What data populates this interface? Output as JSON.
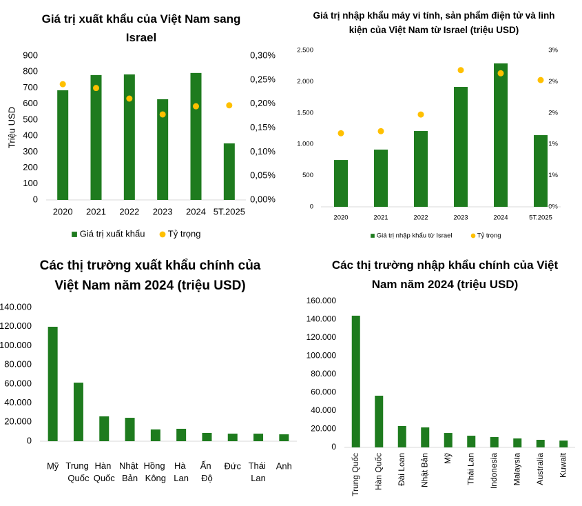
{
  "chart_data": [
    {
      "type": "combo",
      "title": "Giá trị xuất khẩu của Việt Nam sang Israel",
      "categories": [
        "2020",
        "2021",
        "2022",
        "2023",
        "2024",
        "5T.2025"
      ],
      "ylabel": "Triệu USD",
      "series": [
        {
          "name": "Giá trị xuất khẩu",
          "type": "bar",
          "color": "#1e7b1e",
          "values": [
            685,
            780,
            784,
            629,
            793,
            353
          ]
        },
        {
          "name": "Tỷ trọng",
          "type": "scatter",
          "color": "#ffc000",
          "axis": "y2",
          "values": [
            0.241,
            0.233,
            0.211,
            0.178,
            0.195,
            0.197
          ]
        }
      ],
      "ylim": [
        0,
        900
      ],
      "yticks": [
        0,
        100,
        200,
        300,
        400,
        500,
        600,
        700,
        800,
        900
      ],
      "y2lim": [
        0,
        0.3
      ],
      "y2ticks": [
        {
          "value": 0,
          "label": "0,00%"
        },
        {
          "value": 0.05,
          "label": "0,05%"
        },
        {
          "value": 0.1,
          "label": "0,10%"
        },
        {
          "value": 0.15,
          "label": "0,15%"
        },
        {
          "value": 0.2,
          "label": "0,20%"
        },
        {
          "value": 0.25,
          "label": "0,25%"
        },
        {
          "value": 0.3,
          "label": "0,30%"
        }
      ],
      "grid": false,
      "legend": "bottom"
    },
    {
      "type": "combo",
      "title": "Giá trị nhập khẩu máy vi tính, sản phẩm điện tử và linh kiện của Việt Nam từ Israel (triệu USD)",
      "categories": [
        "2020",
        "2021",
        "2022",
        "2023",
        "2024",
        "5T.2025"
      ],
      "series": [
        {
          "name": "Giá trị nhập khẩu từ Israel",
          "type": "bar",
          "color": "#1e7b1e",
          "values": [
            748,
            914,
            1211,
            1916,
            2291,
            1145
          ]
        },
        {
          "name": "Tỷ trọng",
          "type": "scatter",
          "color": "#ffc000",
          "axis": "y2",
          "values": [
            1.41,
            1.45,
            1.77,
            2.62,
            2.56,
            2.43
          ]
        }
      ],
      "ylim": [
        0,
        2500
      ],
      "yticks": [
        0,
        500,
        {
          "value": 1000,
          "label": "1.000"
        },
        {
          "value": 1500,
          "label": "1.500"
        },
        {
          "value": 2000,
          "label": "2.000"
        },
        {
          "value": 2500,
          "label": "2.500"
        }
      ],
      "y2lim": [
        0,
        3
      ],
      "y2ticks": [
        {
          "value": 0,
          "label": "0%"
        },
        {
          "value": 0.6,
          "label": "1%"
        },
        {
          "value": 1.2,
          "label": "1%"
        },
        {
          "value": 1.8,
          "label": "2%"
        },
        {
          "value": 2.4,
          "label": "2%"
        },
        {
          "value": 3,
          "label": "3%"
        }
      ],
      "grid": false,
      "legend": "bottom"
    },
    {
      "type": "bar",
      "title": "Các thị trường xuất khẩu chính của Việt Nam năm 2024 (triệu USD)",
      "categories": [
        "Mỹ",
        "Trung Quốc",
        "Hàn Quốc",
        "Nhật Bản",
        "Hồng Kông",
        "Hà Lan",
        "Ấn Độ",
        "Đức",
        "Thái Lan",
        "Anh"
      ],
      "values": [
        119800,
        61300,
        26000,
        24500,
        12300,
        13000,
        8700,
        7900,
        7900,
        7200
      ],
      "color": "#1e7b1e",
      "ylim": [
        0,
        140000
      ],
      "yticks": [
        0,
        {
          "value": 20000,
          "label": "20.000"
        },
        {
          "value": 40000,
          "label": "40.000"
        },
        {
          "value": 60000,
          "label": "60.000"
        },
        {
          "value": 80000,
          "label": "80.000"
        },
        {
          "value": 100000,
          "label": "100.000"
        },
        {
          "value": 120000,
          "label": "120.000"
        },
        {
          "value": 140000,
          "label": "140.000"
        }
      ],
      "grid": false,
      "xtick_rotation": 0
    },
    {
      "type": "bar",
      "title": "Các thị trường nhập khẩu chính của Việt Nam năm 2024 (triệu USD)",
      "categories": [
        "Trung Quốc",
        "Hàn Quốc",
        "Đài Loan",
        "Nhật Bản",
        "Mỹ",
        "Thái Lan",
        "Indonesia",
        "Malaysia",
        "Australia",
        "Kuwait"
      ],
      "values": [
        144200,
        56600,
        23400,
        21900,
        15800,
        12800,
        11300,
        9800,
        8300,
        7500
      ],
      "color": "#1e7b1e",
      "ylim": [
        0,
        160000
      ],
      "yticks": [
        0,
        {
          "value": 20000,
          "label": "20.000"
        },
        {
          "value": 40000,
          "label": "40.000"
        },
        {
          "value": 60000,
          "label": "60.000"
        },
        {
          "value": 80000,
          "label": "80.000"
        },
        {
          "value": 100000,
          "label": "100.000"
        },
        {
          "value": 120000,
          "label": "120.000"
        },
        {
          "value": 140000,
          "label": "140.000"
        },
        {
          "value": 160000,
          "label": "160.000"
        }
      ],
      "grid": false,
      "xtick_rotation": -90
    }
  ]
}
